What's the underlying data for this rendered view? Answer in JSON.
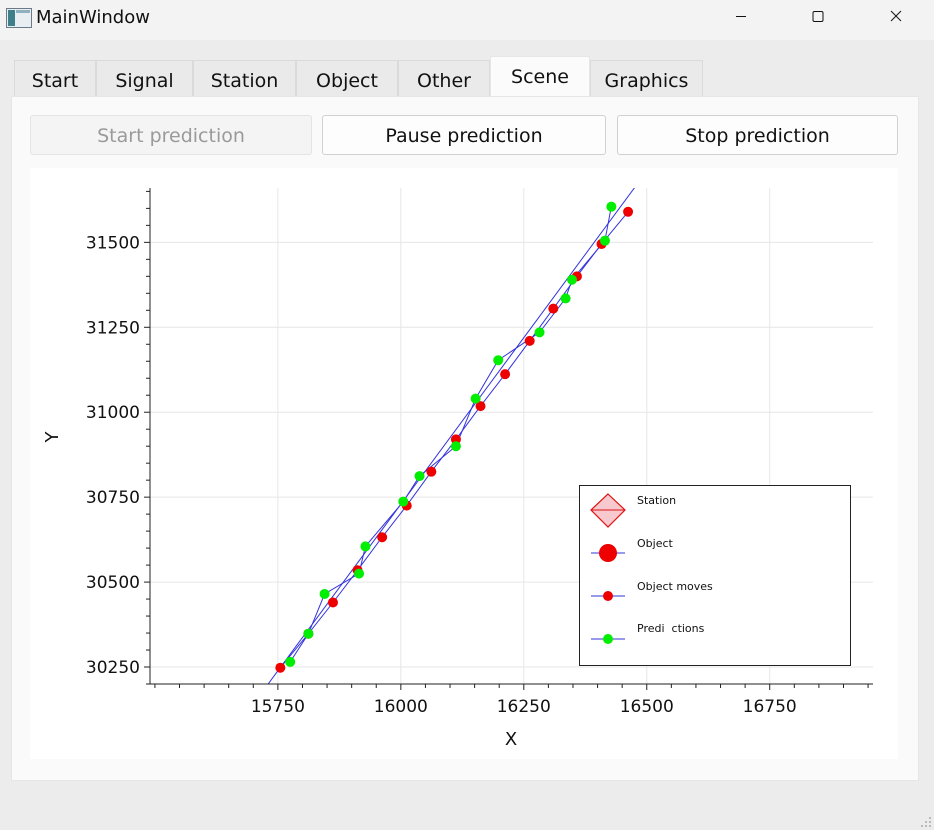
{
  "window": {
    "title": "MainWindow",
    "icon": "app-window-icon"
  },
  "tabs": [
    {
      "label": "Start",
      "active": false
    },
    {
      "label": "Signal",
      "active": false
    },
    {
      "label": "Station",
      "active": false
    },
    {
      "label": "Object",
      "active": false
    },
    {
      "label": "Other",
      "active": false
    },
    {
      "label": "Scene",
      "active": true
    },
    {
      "label": "Graphics",
      "active": false
    }
  ],
  "toolbar": {
    "start_label": "Start prediction",
    "pause_label": "Pause prediction",
    "stop_label": "Stop prediction"
  },
  "chart_data": {
    "type": "scatter",
    "xlabel": "X",
    "ylabel": "Y",
    "xlim": [
      15490,
      16960
    ],
    "ylim": [
      30200,
      31660
    ],
    "x_ticks": [
      15750,
      16000,
      16250,
      16500,
      16750
    ],
    "y_ticks": [
      30250,
      30500,
      30750,
      31000,
      31250,
      31500
    ],
    "grid": true,
    "legend_position": "bottom-right",
    "colors": {
      "object": "#ee0000",
      "prediction": "#00ee00",
      "line": "#3333dd"
    },
    "legend": [
      "Station",
      "Object",
      "Object moves",
      "Predi  ctions"
    ],
    "series": [
      {
        "name": "Object moves",
        "x": [
          15755,
          15812,
          15862,
          15912,
          15962,
          16012,
          16062,
          16112,
          16162,
          16212,
          16262,
          16310,
          16358,
          16408,
          16462
        ],
        "y": [
          30248,
          30348,
          30440,
          30535,
          30632,
          30725,
          30825,
          30920,
          31018,
          31112,
          31210,
          31305,
          31400,
          31495,
          31590
        ]
      },
      {
        "name": "Predi  ctions",
        "x": [
          15775,
          15812,
          15845,
          15915,
          15928,
          16005,
          16038,
          16112,
          16152,
          16198,
          16282,
          16335,
          16348,
          16415,
          16428
        ],
        "y": [
          30265,
          30348,
          30465,
          30525,
          30605,
          30737,
          30812,
          30900,
          31040,
          31153,
          31235,
          31335,
          31390,
          31505,
          31605
        ]
      }
    ],
    "trend_line": {
      "x": [
        15720,
        16490
      ],
      "y": [
        30180,
        31690
      ]
    }
  }
}
